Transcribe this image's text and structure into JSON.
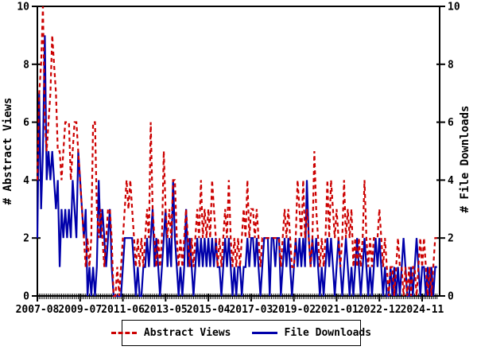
{
  "chart_data": {
    "type": "line",
    "title": "",
    "x_unit": "month",
    "x_start": "2007-08",
    "x_end": "2025-07",
    "x_tick_interval_months": 23,
    "x_tick_labels": [
      "2007-08",
      "2009-07",
      "2011-06",
      "2013-05",
      "2015-04",
      "2017-03",
      "2019-02",
      "2021-01",
      "2022-12",
      "2024-11"
    ],
    "ylabel_left": "# Abstract Views",
    "ylabel_right": "# File Downloads",
    "ylim": [
      0,
      10
    ],
    "yticks": [
      0,
      2,
      4,
      6,
      8,
      10
    ],
    "grid": false,
    "legend_position": "bottom",
    "series": [
      {
        "name": "File Downloads",
        "axis": "right",
        "color": "#0000aa",
        "style": "solid",
        "values": [
          2,
          7,
          3,
          5,
          9,
          4,
          5,
          4,
          5,
          4,
          3,
          4,
          1,
          3,
          2,
          3,
          2,
          3,
          2,
          4,
          3,
          2,
          5,
          4,
          3,
          2,
          3,
          0,
          1,
          0,
          1,
          0,
          1,
          4,
          2,
          3,
          2,
          1,
          2,
          3,
          1,
          0,
          0,
          0,
          0,
          0,
          1,
          2,
          2,
          2,
          2,
          2,
          1,
          0,
          1,
          0,
          0,
          1,
          1,
          2,
          1,
          2,
          3,
          1,
          2,
          1,
          0,
          1,
          2,
          3,
          1,
          2,
          1,
          4,
          2,
          1,
          0,
          1,
          0,
          1,
          3,
          1,
          2,
          1,
          0,
          1,
          2,
          1,
          2,
          1,
          2,
          1,
          2,
          1,
          2,
          1,
          2,
          1,
          1,
          0,
          1,
          2,
          1,
          2,
          1,
          0,
          1,
          0,
          1,
          1,
          0,
          1,
          1,
          2,
          1,
          2,
          2,
          1,
          2,
          1,
          0,
          1,
          2,
          2,
          2,
          0,
          2,
          2,
          1,
          2,
          2,
          0,
          1,
          2,
          1,
          2,
          1,
          0,
          1,
          2,
          1,
          2,
          1,
          2,
          1,
          4,
          2,
          1,
          2,
          1,
          2,
          1,
          0,
          1,
          0,
          1,
          2,
          1,
          2,
          1,
          0,
          1,
          2,
          1,
          0,
          1,
          2,
          1,
          0,
          1,
          0,
          1,
          2,
          1,
          0,
          1,
          2,
          1,
          0,
          1,
          0,
          1,
          2,
          1,
          2,
          1,
          0,
          1,
          0,
          0,
          1,
          0,
          1,
          0,
          1,
          0,
          1,
          2,
          1,
          0,
          0,
          1,
          0,
          1,
          2,
          1,
          0,
          1,
          1,
          0,
          1,
          0,
          1,
          0,
          1,
          1
        ]
      },
      {
        "name": "Abstract Views",
        "axis": "left",
        "color": "#cc0000",
        "style": "dashed",
        "values": [
          4,
          7,
          8,
          10,
          6,
          5,
          6,
          7,
          9,
          8,
          7,
          5,
          5,
          4,
          5,
          6,
          6,
          6,
          4,
          5,
          6,
          6,
          5,
          4,
          3,
          2,
          1,
          2,
          1,
          2,
          6,
          6,
          3,
          2,
          3,
          2,
          1,
          2,
          3,
          3,
          2,
          0,
          0,
          1,
          0,
          1,
          2,
          3,
          4,
          3,
          4,
          3,
          2,
          1,
          2,
          1,
          2,
          1,
          2,
          3,
          2,
          6,
          3,
          2,
          1,
          2,
          1,
          2,
          5,
          3,
          2,
          3,
          2,
          4,
          4,
          2,
          1,
          2,
          1,
          2,
          3,
          2,
          1,
          2,
          1,
          2,
          3,
          2,
          4,
          2,
          3,
          2,
          3,
          2,
          4,
          3,
          2,
          1,
          2,
          1,
          2,
          3,
          2,
          4,
          2,
          1,
          2,
          1,
          2,
          1,
          2,
          3,
          2,
          4,
          2,
          3,
          3,
          2,
          3,
          2,
          1,
          2,
          2,
          2,
          2,
          2,
          2,
          2,
          2,
          2,
          2,
          1,
          2,
          3,
          2,
          3,
          2,
          1,
          1,
          2,
          4,
          3,
          2,
          4,
          2,
          3,
          2,
          1,
          2,
          5,
          3,
          2,
          1,
          2,
          1,
          2,
          4,
          2,
          4,
          3,
          2,
          3,
          2,
          1,
          2,
          4,
          2,
          3,
          2,
          3,
          1,
          2,
          1,
          2,
          1,
          2,
          4,
          2,
          1,
          2,
          1,
          2,
          2,
          2,
          3,
          2,
          1,
          2,
          1,
          0,
          1,
          1,
          0,
          1,
          2,
          1,
          1,
          0,
          1,
          0,
          1,
          0,
          1,
          1,
          0,
          1,
          2,
          1,
          2,
          1,
          0,
          1,
          0,
          1,
          2,
          2
        ]
      }
    ]
  },
  "legend": {
    "abstract_views_label": "Abstract Views",
    "file_downloads_label": "File Downloads"
  }
}
